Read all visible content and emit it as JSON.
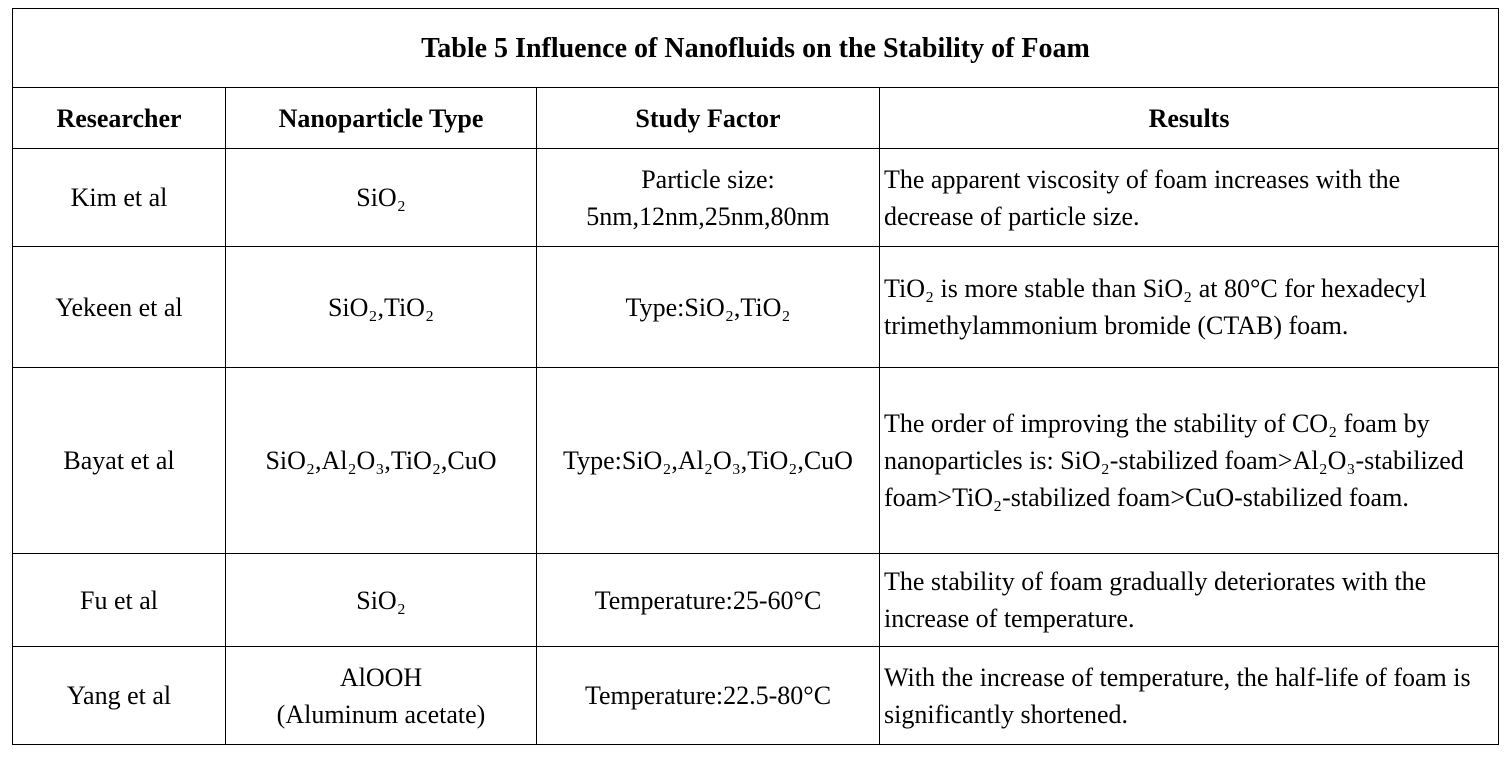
{
  "table": {
    "title": "Table 5 Influence of Nanofluids on the Stability of Foam",
    "headers": [
      "Researcher",
      "Nanoparticle Type",
      "Study Factor",
      "Results"
    ],
    "rows": [
      {
        "researcher": "Kim et al",
        "nanoparticle_type": "SiO₂",
        "nanoparticle_type_line2": "",
        "study_factor": "Particle size:",
        "study_factor_line2": "5nm,12nm,25nm,80nm",
        "results": "The apparent viscosity of foam increases with the decrease of particle size."
      },
      {
        "researcher": "Yekeen et al",
        "nanoparticle_type": "SiO₂,TiO₂",
        "nanoparticle_type_line2": "",
        "study_factor": "Type:SiO₂,TiO₂",
        "study_factor_line2": "",
        "results": "TiO₂ is more stable than SiO₂ at 80°C for hexadecyl trimethylammonium bromide (CTAB) foam."
      },
      {
        "researcher": "Bayat et al",
        "nanoparticle_type": "SiO₂,Al₂O₃,TiO₂,CuO",
        "nanoparticle_type_line2": "",
        "study_factor": "Type:SiO₂,Al₂O₃,TiO₂,CuO",
        "study_factor_line2": "",
        "results": "The order of improving the stability of CO₂ foam by nanoparticles is: SiO₂-stabilized foam>Al₂O₃-stabilized foam>TiO₂-stabilized foam>CuO-stabilized foam."
      },
      {
        "researcher": "Fu et al",
        "nanoparticle_type": "SiO₂",
        "nanoparticle_type_line2": "",
        "study_factor": "Temperature:25-60°C",
        "study_factor_line2": "",
        "results": "The stability of foam gradually deteriorates with the increase of temperature."
      },
      {
        "researcher": "Yang et al",
        "nanoparticle_type": "AlOOH",
        "nanoparticle_type_line2": "(Aluminum acetate)",
        "study_factor": "Temperature:22.5-80°C",
        "study_factor_line2": "",
        "results": "With the increase of temperature, the half-life of foam is significantly shortened."
      }
    ]
  }
}
